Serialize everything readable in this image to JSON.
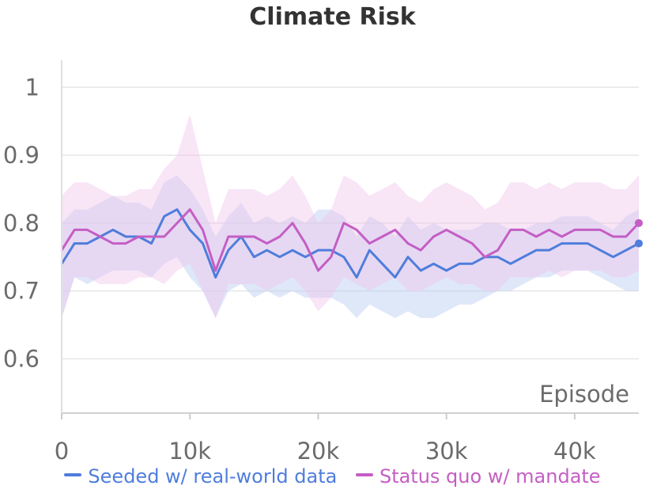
{
  "chart_data": {
    "type": "line",
    "title": "Climate Risk",
    "xlabel": "Episode",
    "ylabel": "",
    "xlim": [
      0,
      45000
    ],
    "ylim": [
      0.52,
      1.04
    ],
    "x_ticks": [
      0,
      10000,
      20000,
      30000,
      40000
    ],
    "x_tick_labels": [
      "0",
      "10k",
      "20k",
      "30k",
      "40k"
    ],
    "y_ticks": [
      0.6,
      0.7,
      0.8,
      0.9,
      1.0
    ],
    "y_tick_labels": [
      "0.6",
      "0.7",
      "0.8",
      "0.9",
      "1"
    ],
    "grid": true,
    "legend_position": "bottom",
    "x": [
      0,
      1000,
      2000,
      3000,
      4000,
      5000,
      6000,
      7000,
      8000,
      9000,
      10000,
      11000,
      12000,
      13000,
      14000,
      15000,
      16000,
      17000,
      18000,
      19000,
      20000,
      21000,
      22000,
      23000,
      24000,
      25000,
      26000,
      27000,
      28000,
      29000,
      30000,
      31000,
      32000,
      33000,
      34000,
      35000,
      36000,
      37000,
      38000,
      39000,
      40000,
      41000,
      42000,
      43000,
      44000,
      45000
    ],
    "series": [
      {
        "name": "Seeded w/ real-world data",
        "color": "#4f7ddb",
        "band_color": "#b8cdf2",
        "values": [
          0.74,
          0.77,
          0.77,
          0.78,
          0.79,
          0.78,
          0.78,
          0.77,
          0.81,
          0.82,
          0.79,
          0.77,
          0.72,
          0.76,
          0.78,
          0.75,
          0.76,
          0.75,
          0.76,
          0.75,
          0.76,
          0.76,
          0.75,
          0.72,
          0.76,
          0.74,
          0.72,
          0.75,
          0.73,
          0.74,
          0.73,
          0.74,
          0.74,
          0.75,
          0.75,
          0.74,
          0.75,
          0.76,
          0.76,
          0.77,
          0.77,
          0.77,
          0.76,
          0.75,
          0.76,
          0.77
        ],
        "band_low": [
          0.66,
          0.72,
          0.71,
          0.72,
          0.73,
          0.73,
          0.73,
          0.72,
          0.74,
          0.75,
          0.72,
          0.7,
          0.66,
          0.7,
          0.71,
          0.69,
          0.7,
          0.69,
          0.7,
          0.69,
          0.69,
          0.69,
          0.68,
          0.66,
          0.68,
          0.67,
          0.66,
          0.67,
          0.66,
          0.66,
          0.67,
          0.68,
          0.68,
          0.69,
          0.7,
          0.7,
          0.71,
          0.72,
          0.72,
          0.73,
          0.73,
          0.73,
          0.72,
          0.71,
          0.7,
          0.7
        ],
        "band_high": [
          0.8,
          0.82,
          0.82,
          0.83,
          0.84,
          0.83,
          0.83,
          0.82,
          0.86,
          0.87,
          0.85,
          0.82,
          0.78,
          0.81,
          0.83,
          0.8,
          0.81,
          0.8,
          0.81,
          0.8,
          0.82,
          0.82,
          0.81,
          0.78,
          0.81,
          0.8,
          0.78,
          0.81,
          0.79,
          0.8,
          0.79,
          0.79,
          0.79,
          0.8,
          0.8,
          0.79,
          0.79,
          0.8,
          0.8,
          0.81,
          0.81,
          0.81,
          0.8,
          0.79,
          0.81,
          0.82
        ]
      },
      {
        "name": "Status quo w/ mandate",
        "color": "#c45ec4",
        "band_color": "#efc6ec",
        "values": [
          0.76,
          0.79,
          0.79,
          0.78,
          0.77,
          0.77,
          0.78,
          0.78,
          0.78,
          0.8,
          0.82,
          0.79,
          0.73,
          0.78,
          0.78,
          0.78,
          0.77,
          0.78,
          0.8,
          0.77,
          0.73,
          0.75,
          0.8,
          0.79,
          0.77,
          0.78,
          0.79,
          0.77,
          0.76,
          0.78,
          0.79,
          0.78,
          0.77,
          0.75,
          0.76,
          0.79,
          0.79,
          0.78,
          0.79,
          0.78,
          0.79,
          0.79,
          0.79,
          0.78,
          0.78,
          0.8
        ],
        "band_low": [
          0.66,
          0.72,
          0.72,
          0.71,
          0.71,
          0.71,
          0.72,
          0.72,
          0.71,
          0.73,
          0.74,
          0.7,
          0.66,
          0.71,
          0.71,
          0.71,
          0.7,
          0.71,
          0.72,
          0.7,
          0.67,
          0.69,
          0.72,
          0.71,
          0.7,
          0.71,
          0.72,
          0.7,
          0.7,
          0.71,
          0.72,
          0.71,
          0.71,
          0.7,
          0.7,
          0.72,
          0.72,
          0.72,
          0.73,
          0.72,
          0.73,
          0.73,
          0.73,
          0.72,
          0.72,
          0.73
        ],
        "band_high": [
          0.84,
          0.86,
          0.86,
          0.85,
          0.84,
          0.84,
          0.85,
          0.85,
          0.88,
          0.9,
          0.96,
          0.88,
          0.8,
          0.85,
          0.85,
          0.85,
          0.84,
          0.85,
          0.87,
          0.84,
          0.8,
          0.82,
          0.87,
          0.86,
          0.84,
          0.85,
          0.86,
          0.84,
          0.83,
          0.85,
          0.86,
          0.85,
          0.84,
          0.82,
          0.83,
          0.86,
          0.86,
          0.85,
          0.86,
          0.85,
          0.86,
          0.86,
          0.86,
          0.85,
          0.85,
          0.87
        ]
      }
    ]
  }
}
